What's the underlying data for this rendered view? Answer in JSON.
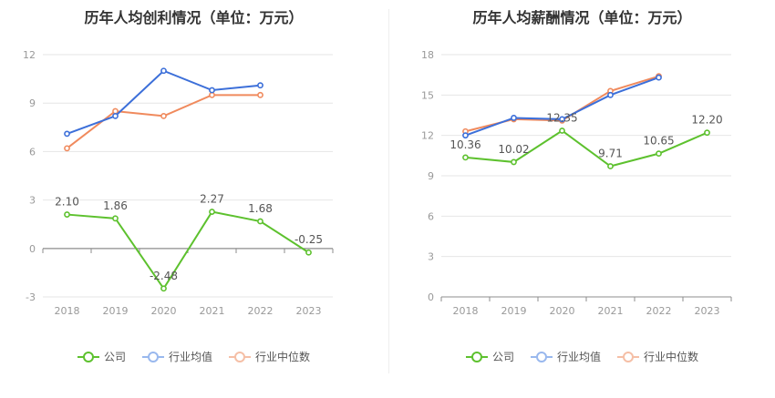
{
  "chart_data": [
    {
      "type": "line",
      "title": "历年人均创利情况（单位：万元）",
      "categories": [
        "2018",
        "2019",
        "2020",
        "2021",
        "2022",
        "2023"
      ],
      "ylim": [
        -3,
        12
      ],
      "yticks": [
        "12",
        "9",
        "6",
        "3",
        "0",
        "-3"
      ],
      "ytick_values": [
        12,
        9,
        6,
        3,
        0,
        -3
      ],
      "series": [
        {
          "name": "公司",
          "color": "#5dc12e",
          "values": [
            2.1,
            1.86,
            -2.48,
            2.27,
            1.68,
            -0.25
          ],
          "labels": [
            "2.10",
            "1.86",
            "-2.48",
            "2.27",
            "1.68",
            "-0.25"
          ]
        },
        {
          "name": "行业均值",
          "color": "#3c6fd9",
          "legend_color": "#99b8ee",
          "values": [
            7.1,
            8.2,
            11.0,
            9.8,
            10.1,
            null
          ]
        },
        {
          "name": "行业中位数",
          "color": "#f08a5d",
          "legend_color": "#f5bfa6",
          "values": [
            6.2,
            8.5,
            8.2,
            9.5,
            9.5,
            null
          ]
        }
      ]
    },
    {
      "type": "line",
      "title": "历年人均薪酬情况（单位：万元）",
      "categories": [
        "2018",
        "2019",
        "2020",
        "2021",
        "2022",
        "2023"
      ],
      "ylim": [
        0,
        18
      ],
      "yticks": [
        "18",
        "15",
        "12",
        "9",
        "6",
        "3",
        "0"
      ],
      "ytick_values": [
        18,
        15,
        12,
        9,
        6,
        3,
        0
      ],
      "series": [
        {
          "name": "公司",
          "color": "#5dc12e",
          "values": [
            10.36,
            10.02,
            12.35,
            9.71,
            10.65,
            12.2
          ],
          "labels": [
            "10.36",
            "10.02",
            "12.35",
            "9.71",
            "10.65",
            "12.20"
          ]
        },
        {
          "name": "行业均值",
          "color": "#3c6fd9",
          "legend_color": "#99b8ee",
          "values": [
            12.0,
            13.3,
            13.2,
            15.0,
            16.3,
            null
          ]
        },
        {
          "name": "行业中位数",
          "color": "#f08a5d",
          "legend_color": "#f5bfa6",
          "values": [
            12.3,
            13.2,
            13.1,
            15.3,
            16.4,
            null
          ]
        }
      ]
    }
  ]
}
